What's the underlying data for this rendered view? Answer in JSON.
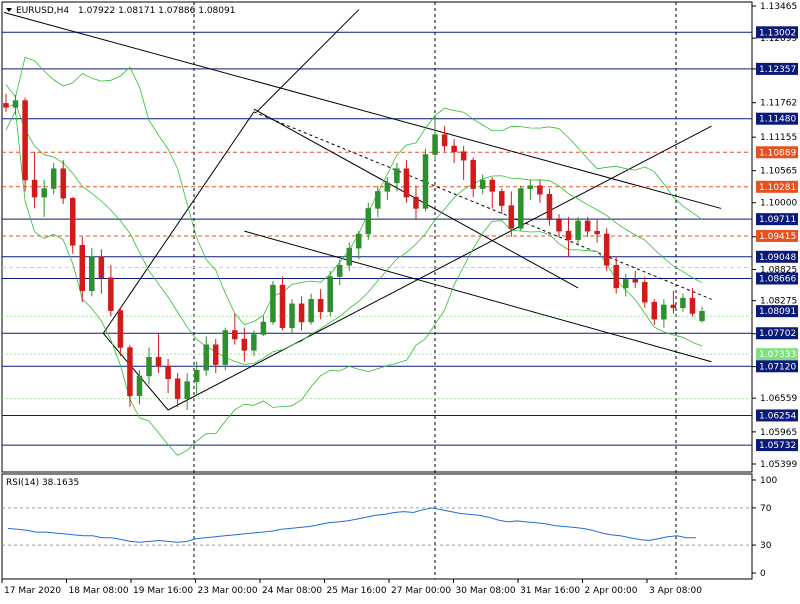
{
  "window": {
    "symbol": "EURUSD,H4",
    "ohlc": "1.07922 1.08171 1.07886 1.08091"
  },
  "chart_data": [
    {
      "type": "candlestick",
      "title": "EURUSD,H4",
      "ylim": [
        1.05399,
        1.13465
      ],
      "price_ticks": [
        "1.13465",
        "1.12899",
        "1.12357",
        "1.11762",
        "1.11155",
        "1.10565",
        "1.10000",
        "1.09401",
        "1.08825",
        "1.08275",
        "1.07693",
        "1.07114",
        "1.06559",
        "1.05965",
        "1.05399"
      ],
      "x_labels": [
        "17 Mar 2020",
        "18 Mar 08:00",
        "19 Mar 16:00",
        "23 Mar 00:00",
        "24 Mar 08:00",
        "25 Mar 16:00",
        "27 Mar 00:00",
        "30 Mar 08:00",
        "31 Mar 16:00",
        "2 Apr 00:00",
        "3 Apr 08:00"
      ],
      "price_markers": [
        {
          "label": "1.13002",
          "value": 1.13002,
          "color": "#0a1a7a"
        },
        {
          "label": "1.12357",
          "value": 1.12357,
          "color": "#0a1a7a"
        },
        {
          "label": "1.11480",
          "value": 1.1148,
          "color": "#0a1a7a"
        },
        {
          "label": "1.10889",
          "value": 1.10889,
          "color": "#e8501f"
        },
        {
          "label": "1.10281",
          "value": 1.10281,
          "color": "#e8501f"
        },
        {
          "label": "1.09711",
          "value": 1.09711,
          "color": "#0a1a7a"
        },
        {
          "label": "1.09415",
          "value": 1.09415,
          "color": "#e8501f"
        },
        {
          "label": "1.09048",
          "value": 1.09048,
          "color": "#0a1a7a"
        },
        {
          "label": "1.08666",
          "value": 1.08666,
          "color": "#0a1a7a"
        },
        {
          "label": "1.08091",
          "value": 1.08091,
          "color": "#0a1a7a"
        },
        {
          "label": "1.07702",
          "value": 1.07702,
          "color": "#0a1a7a"
        },
        {
          "label": "1.07333",
          "value": 1.07333,
          "color": "#7ee07e"
        },
        {
          "label": "1.07120",
          "value": 1.0712,
          "color": "#0a1a7a"
        },
        {
          "label": "1.06254",
          "value": 1.06254,
          "color": "#0a1a7a"
        },
        {
          "label": "1.05732",
          "value": 1.05732,
          "color": "#0a1a7a"
        }
      ],
      "horizontal_lines": [
        {
          "value": 1.13002,
          "style": "solid",
          "color": "#0a1a7a"
        },
        {
          "value": 1.12357,
          "style": "solid",
          "color": "#0a1a7a"
        },
        {
          "value": 1.1148,
          "style": "solid",
          "color": "#0a1a7a"
        },
        {
          "value": 1.10889,
          "style": "dashed",
          "color": "#e8501f"
        },
        {
          "value": 1.10281,
          "style": "dashed",
          "color": "#e8501f"
        },
        {
          "value": 1.09711,
          "style": "solid",
          "color": "#0a1a7a"
        },
        {
          "value": 1.09415,
          "style": "dashed",
          "color": "#e8501f"
        },
        {
          "value": 1.09048,
          "style": "solid",
          "color": "#0a1a7a"
        },
        {
          "value": 1.0886,
          "style": "dashed",
          "color": "#f2e000"
        },
        {
          "value": 1.08666,
          "style": "solid",
          "color": "#0a1a7a"
        },
        {
          "value": 1.07702,
          "style": "solid",
          "color": "#0a1a7a"
        },
        {
          "value": 1.0712,
          "style": "solid",
          "color": "#0a1a7a"
        },
        {
          "value": 1.06254,
          "style": "solid",
          "color": "#0a1a7a"
        },
        {
          "value": 1.05732,
          "style": "solid",
          "color": "#0a1a7a"
        },
        {
          "value": 1.08,
          "style": "dotted",
          "color": "#9be59b"
        },
        {
          "value": 1.07333,
          "style": "dotted",
          "color": "#9be59b"
        },
        {
          "value": 1.0655,
          "style": "dotted",
          "color": "#9be59b"
        }
      ],
      "candles": [
        [
          1.1175,
          1.1192,
          1.116,
          1.1168
        ],
        [
          1.1168,
          1.119,
          1.1155,
          1.118
        ],
        [
          1.118,
          1.1185,
          1.102,
          1.104
        ],
        [
          1.104,
          1.109,
          1.099,
          1.101
        ],
        [
          1.101,
          1.104,
          1.0975,
          1.1025
        ],
        [
          1.1025,
          1.107,
          1.1015,
          1.106
        ],
        [
          1.106,
          1.1075,
          1.0998,
          1.1008
        ],
        [
          1.1008,
          1.101,
          1.091,
          1.0925
        ],
        [
          1.0925,
          1.094,
          1.0825,
          1.0845
        ],
        [
          1.0845,
          1.092,
          1.0835,
          1.0905
        ],
        [
          1.0905,
          1.0918,
          1.084,
          1.0868
        ],
        [
          1.0868,
          1.089,
          1.08,
          1.081
        ],
        [
          1.081,
          1.0815,
          1.073,
          1.0745
        ],
        [
          1.0745,
          1.075,
          1.064,
          1.066
        ],
        [
          1.066,
          1.0705,
          1.0645,
          1.0695
        ],
        [
          1.0695,
          1.0745,
          1.068,
          1.0728
        ],
        [
          1.0728,
          1.077,
          1.07,
          1.0712
        ],
        [
          1.0712,
          1.0725,
          1.0665,
          1.069
        ],
        [
          1.069,
          1.07,
          1.064,
          1.0655
        ],
        [
          1.0655,
          1.07,
          1.0635,
          1.0685
        ],
        [
          1.0685,
          1.072,
          1.066,
          1.0705
        ],
        [
          1.0705,
          1.0765,
          1.0695,
          1.075
        ],
        [
          1.075,
          1.076,
          1.07,
          1.0715
        ],
        [
          1.0715,
          1.078,
          1.0705,
          1.0775
        ],
        [
          1.0775,
          1.0805,
          1.075,
          1.076
        ],
        [
          1.076,
          1.078,
          1.072,
          1.074
        ],
        [
          1.074,
          1.0775,
          1.073,
          1.0768
        ],
        [
          1.0768,
          1.08,
          1.0765,
          1.079
        ],
        [
          1.079,
          1.0862,
          1.0785,
          1.0855
        ],
        [
          1.0855,
          1.087,
          1.0775,
          1.078
        ],
        [
          1.078,
          1.083,
          1.077,
          1.0822
        ],
        [
          1.0822,
          1.0835,
          1.0775,
          1.079
        ],
        [
          1.079,
          1.084,
          1.0785,
          1.083
        ],
        [
          1.083,
          1.0848,
          1.0795,
          1.0808
        ],
        [
          1.0808,
          1.088,
          1.08,
          1.087
        ],
        [
          1.087,
          1.09,
          1.0855,
          1.089
        ],
        [
          1.089,
          1.093,
          1.088,
          1.092
        ],
        [
          1.092,
          1.095,
          1.09,
          1.0945
        ],
        [
          1.0945,
          1.1,
          1.0935,
          1.099
        ],
        [
          1.099,
          1.103,
          1.0975,
          1.102
        ],
        [
          1.102,
          1.1045,
          1.1005,
          1.1035
        ],
        [
          1.1035,
          1.107,
          1.102,
          1.106
        ],
        [
          1.106,
          1.1075,
          1.1,
          1.101
        ],
        [
          1.101,
          1.103,
          1.097,
          1.099
        ],
        [
          1.099,
          1.1095,
          1.0985,
          1.1085
        ],
        [
          1.1085,
          1.115,
          1.1075,
          1.112
        ],
        [
          1.112,
          1.1135,
          1.109,
          1.11
        ],
        [
          1.11,
          1.1112,
          1.107,
          1.109
        ],
        [
          1.109,
          1.11,
          1.104,
          1.1075
        ],
        [
          1.1075,
          1.108,
          1.101,
          1.1025
        ],
        [
          1.1025,
          1.105,
          1.1015,
          1.104
        ],
        [
          1.104,
          1.1045,
          1.099,
          1.102
        ],
        [
          1.102,
          1.1025,
          1.098,
          1.0995
        ],
        [
          1.0995,
          1.102,
          1.094,
          1.0955
        ],
        [
          1.0955,
          1.103,
          1.095,
          1.1025
        ],
        [
          1.1025,
          1.104,
          1.1005,
          1.103
        ],
        [
          1.103,
          1.104,
          1.1,
          1.1015
        ],
        [
          1.1015,
          1.1025,
          1.096,
          1.097
        ],
        [
          1.097,
          1.098,
          1.094,
          1.095
        ],
        [
          1.095,
          1.0975,
          1.0905,
          1.0935
        ],
        [
          1.0935,
          1.0975,
          1.0925,
          1.0968
        ],
        [
          1.0968,
          1.0975,
          1.094,
          1.095
        ],
        [
          1.095,
          1.097,
          1.093,
          1.0945
        ],
        [
          1.0945,
          1.0955,
          1.088,
          1.089
        ],
        [
          1.089,
          1.0905,
          1.084,
          1.085
        ],
        [
          1.085,
          1.0875,
          1.0835,
          1.0865
        ],
        [
          1.0865,
          1.088,
          1.085,
          1.086
        ],
        [
          1.086,
          1.087,
          1.0815,
          1.0825
        ],
        [
          1.0825,
          1.083,
          1.0785,
          1.0795
        ],
        [
          1.0795,
          1.083,
          1.078,
          1.082
        ],
        [
          1.082,
          1.0845,
          1.0805,
          1.0815
        ],
        [
          1.0815,
          1.084,
          1.0808,
          1.0832
        ],
        [
          1.0832,
          1.085,
          1.08,
          1.0805
        ],
        [
          1.0792,
          1.0817,
          1.0789,
          1.0809
        ]
      ],
      "rsi": {
        "label": "RSI(14) 38.1635",
        "levels": [
          70,
          30
        ],
        "ticks": [
          "100",
          "70",
          "30",
          "0"
        ],
        "values": [
          48,
          47,
          46,
          44,
          44,
          43,
          42,
          41,
          40,
          40,
          38,
          38,
          36,
          34,
          33,
          34,
          35,
          34,
          33,
          34,
          37,
          38,
          39,
          40,
          41,
          42,
          43,
          44,
          45,
          47,
          48,
          49,
          50,
          52,
          54,
          55,
          56,
          58,
          60,
          62,
          63,
          65,
          66,
          65,
          68,
          70,
          68,
          66,
          64,
          63,
          62,
          60,
          57,
          55,
          56,
          55,
          54,
          53,
          51,
          50,
          49,
          48,
          46,
          43,
          41,
          40,
          38,
          36,
          35,
          37,
          39,
          40,
          38,
          38
        ]
      }
    }
  ]
}
